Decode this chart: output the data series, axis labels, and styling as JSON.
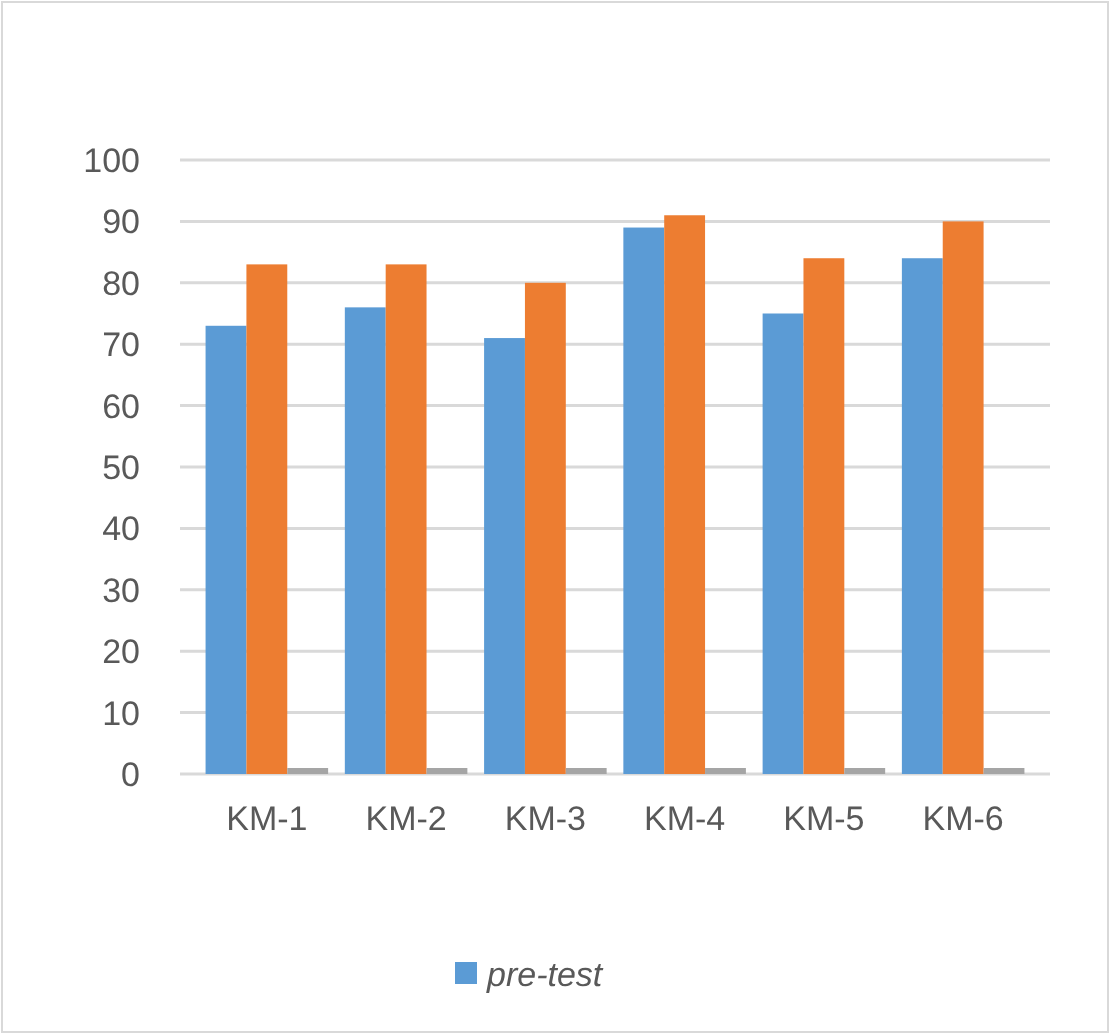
{
  "chart_data": {
    "type": "bar",
    "categories": [
      "KM-1",
      "KM-2",
      "KM-3",
      "KM-4",
      "KM-5",
      "KM-6"
    ],
    "series": [
      {
        "name": "pre-test",
        "color": "#5b9bd5",
        "values": [
          73,
          76,
          71,
          89,
          75,
          84
        ]
      },
      {
        "color": "#ed7d31",
        "values": [
          83,
          83,
          80,
          91,
          84,
          90
        ]
      },
      {
        "color": "#a5a5a5",
        "values": [
          0,
          0,
          0,
          0,
          0,
          0
        ]
      }
    ],
    "ylim": [
      0,
      100
    ],
    "yticks": [
      0,
      10,
      20,
      30,
      40,
      50,
      60,
      70,
      80,
      90,
      100
    ],
    "grid": true,
    "legend": "bottom"
  }
}
